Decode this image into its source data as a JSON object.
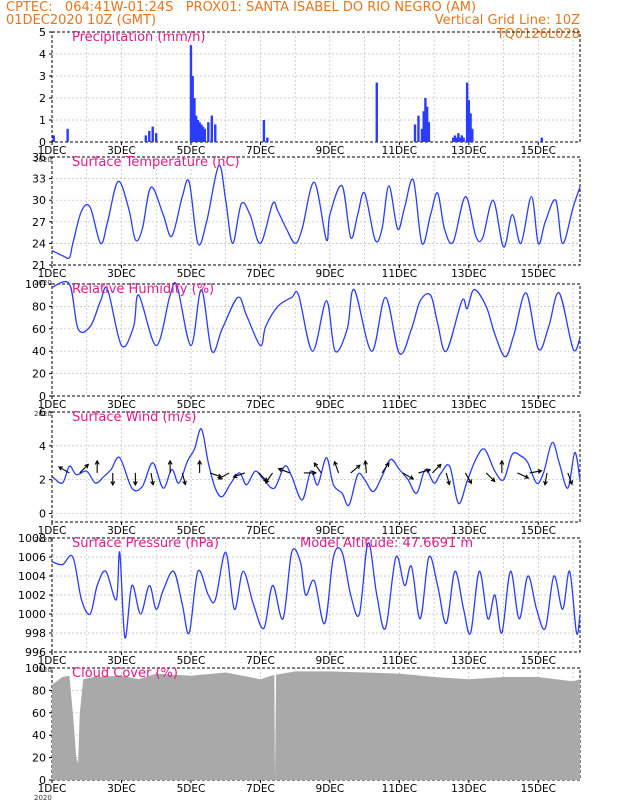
{
  "header": {
    "line1_left": "CPTEC:   064:41W-01:24S   PROX01: SANTA ISABEL DO RIO NEGRO (AM)",
    "line2_left": "01DEC2020 10Z (GMT)",
    "line2_right": "Vertical Grid Line: 10Z",
    "line3_right": "TQ0126L028"
  },
  "colors": {
    "header": "#e8741c",
    "title": "#e8178a",
    "series": "#2a3cff",
    "bars": "#2a3cff",
    "cloud": "#a9a9a9"
  },
  "x_axis": {
    "tick_labels": [
      "1DEC",
      "3DEC",
      "5DEC",
      "7DEC",
      "9DEC",
      "11DEC",
      "13DEC",
      "15DEC"
    ],
    "tick_days": [
      0,
      2,
      4,
      6,
      8,
      10,
      12,
      14
    ],
    "year_label": "2020",
    "range_days": [
      0,
      15.2
    ]
  },
  "chart_data": [
    {
      "type": "bar",
      "title": "Precipitation (mm/h)",
      "yticks": [
        0,
        1,
        2,
        3,
        4,
        5
      ],
      "ylim": [
        0,
        5
      ],
      "points": [
        [
          0.05,
          0.3
        ],
        [
          0.45,
          0.6
        ],
        [
          2.7,
          0.3
        ],
        [
          2.8,
          0.5
        ],
        [
          2.9,
          0.7
        ],
        [
          3.0,
          0.4
        ],
        [
          4.0,
          4.4
        ],
        [
          4.05,
          3.0
        ],
        [
          4.1,
          2.0
        ],
        [
          4.15,
          1.2
        ],
        [
          4.2,
          1.0
        ],
        [
          4.25,
          0.9
        ],
        [
          4.3,
          0.8
        ],
        [
          4.35,
          0.7
        ],
        [
          4.4,
          0.6
        ],
        [
          4.5,
          0.9
        ],
        [
          4.6,
          1.2
        ],
        [
          4.7,
          0.8
        ],
        [
          6.1,
          1.0
        ],
        [
          6.2,
          0.2
        ],
        [
          9.35,
          2.7
        ],
        [
          10.45,
          0.8
        ],
        [
          10.55,
          1.2
        ],
        [
          10.65,
          0.6
        ],
        [
          10.7,
          1.4
        ],
        [
          10.75,
          2.0
        ],
        [
          10.8,
          1.6
        ],
        [
          10.85,
          0.9
        ],
        [
          11.55,
          0.2
        ],
        [
          11.6,
          0.3
        ],
        [
          11.65,
          0.2
        ],
        [
          11.7,
          0.4
        ],
        [
          11.75,
          0.2
        ],
        [
          11.8,
          0.3
        ],
        [
          11.85,
          0.2
        ],
        [
          11.95,
          2.7
        ],
        [
          12.0,
          1.9
        ],
        [
          12.05,
          1.3
        ],
        [
          12.1,
          0.6
        ],
        [
          14.1,
          0.2
        ]
      ]
    },
    {
      "type": "line",
      "title": "Surface Temperature (nC)",
      "yticks": [
        21,
        24,
        27,
        30,
        33,
        36
      ],
      "ylim": [
        21,
        36
      ],
      "points": [
        [
          0.0,
          23.0
        ],
        [
          0.3,
          22.3
        ],
        [
          0.5,
          22.0
        ],
        [
          0.6,
          24.0
        ],
        [
          0.85,
          28.5
        ],
        [
          1.1,
          29.0
        ],
        [
          1.4,
          24.0
        ],
        [
          1.6,
          27.0
        ],
        [
          1.9,
          32.6
        ],
        [
          2.2,
          29.0
        ],
        [
          2.4,
          24.5
        ],
        [
          2.6,
          26.0
        ],
        [
          2.85,
          31.8
        ],
        [
          3.2,
          28.0
        ],
        [
          3.45,
          25.0
        ],
        [
          3.75,
          30.5
        ],
        [
          3.95,
          32.5
        ],
        [
          4.2,
          24.0
        ],
        [
          4.45,
          27.0
        ],
        [
          4.8,
          34.8
        ],
        [
          5.0,
          30.0
        ],
        [
          5.2,
          24.0
        ],
        [
          5.45,
          29.5
        ],
        [
          5.7,
          28.0
        ],
        [
          6.0,
          24.0
        ],
        [
          6.35,
          29.5
        ],
        [
          6.5,
          28.5
        ],
        [
          6.75,
          26.0
        ],
        [
          7.0,
          24.0
        ],
        [
          7.2,
          26.0
        ],
        [
          7.55,
          32.5
        ],
        [
          7.9,
          24.5
        ],
        [
          8.0,
          28.0
        ],
        [
          8.35,
          32.0
        ],
        [
          8.6,
          24.8
        ],
        [
          8.8,
          28.0
        ],
        [
          9.0,
          31.0
        ],
        [
          9.3,
          24.5
        ],
        [
          9.5,
          26.0
        ],
        [
          9.7,
          32.0
        ],
        [
          9.95,
          26.0
        ],
        [
          10.15,
          29.0
        ],
        [
          10.4,
          32.8
        ],
        [
          10.65,
          24.0
        ],
        [
          10.9,
          28.0
        ],
        [
          11.1,
          31.0
        ],
        [
          11.3,
          26.0
        ],
        [
          11.55,
          24.2
        ],
        [
          11.9,
          30.5
        ],
        [
          12.2,
          25.0
        ],
        [
          12.4,
          24.8
        ],
        [
          12.7,
          30.0
        ],
        [
          13.0,
          23.5
        ],
        [
          13.25,
          28.0
        ],
        [
          13.5,
          24.0
        ],
        [
          13.8,
          30.5
        ],
        [
          14.0,
          24.0
        ],
        [
          14.2,
          27.0
        ],
        [
          14.5,
          30.0
        ],
        [
          14.7,
          24.0
        ],
        [
          15.0,
          29.0
        ],
        [
          15.2,
          31.8
        ]
      ]
    },
    {
      "type": "line",
      "title": "Relative Humidity (%)",
      "yticks": [
        0,
        20,
        40,
        60,
        80,
        100
      ],
      "ylim": [
        0,
        100
      ],
      "points": [
        [
          0.0,
          97.0
        ],
        [
          0.5,
          100.0
        ],
        [
          0.75,
          60.0
        ],
        [
          1.1,
          62.0
        ],
        [
          1.4,
          85.0
        ],
        [
          1.6,
          95.0
        ],
        [
          2.0,
          45.0
        ],
        [
          2.35,
          62.0
        ],
        [
          2.5,
          90.0
        ],
        [
          3.0,
          45.0
        ],
        [
          3.4,
          90.0
        ],
        [
          3.6,
          98.0
        ],
        [
          4.0,
          45.0
        ],
        [
          4.3,
          95.0
        ],
        [
          4.6,
          40.0
        ],
        [
          4.9,
          60.0
        ],
        [
          5.35,
          88.0
        ],
        [
          5.6,
          72.0
        ],
        [
          6.0,
          45.0
        ],
        [
          6.15,
          62.0
        ],
        [
          6.5,
          80.0
        ],
        [
          6.9,
          88.0
        ],
        [
          7.1,
          90.0
        ],
        [
          7.5,
          40.0
        ],
        [
          7.9,
          85.0
        ],
        [
          8.15,
          40.0
        ],
        [
          8.5,
          60.0
        ],
        [
          8.7,
          95.0
        ],
        [
          9.2,
          40.0
        ],
        [
          9.6,
          88.0
        ],
        [
          10.0,
          38.0
        ],
        [
          10.35,
          60.0
        ],
        [
          10.6,
          85.0
        ],
        [
          10.9,
          90.0
        ],
        [
          11.1,
          65.0
        ],
        [
          11.35,
          40.0
        ],
        [
          11.8,
          85.0
        ],
        [
          11.95,
          78.0
        ],
        [
          12.15,
          95.0
        ],
        [
          12.5,
          80.0
        ],
        [
          12.75,
          55.0
        ],
        [
          13.05,
          35.0
        ],
        [
          13.3,
          55.0
        ],
        [
          13.65,
          92.0
        ],
        [
          14.0,
          42.0
        ],
        [
          14.3,
          62.0
        ],
        [
          14.6,
          92.0
        ],
        [
          15.0,
          42.0
        ],
        [
          15.2,
          52.0
        ]
      ]
    },
    {
      "type": "line",
      "title": "Surface Wind (m/s)",
      "yticks": [
        0,
        2,
        4,
        6
      ],
      "ylim": [
        -0.5,
        6
      ],
      "points": [
        [
          0.0,
          2.2
        ],
        [
          0.3,
          1.8
        ],
        [
          0.5,
          2.8
        ],
        [
          0.7,
          2.3
        ],
        [
          1.0,
          2.5
        ],
        [
          1.25,
          1.8
        ],
        [
          1.5,
          2.2
        ],
        [
          1.7,
          2.6
        ],
        [
          1.95,
          3.3
        ],
        [
          2.3,
          1.5
        ],
        [
          2.6,
          1.6
        ],
        [
          2.9,
          3.0
        ],
        [
          3.2,
          1.5
        ],
        [
          3.45,
          2.6
        ],
        [
          3.65,
          1.8
        ],
        [
          3.9,
          3.1
        ],
        [
          4.1,
          3.8
        ],
        [
          4.3,
          5.0
        ],
        [
          4.5,
          3.0
        ],
        [
          4.7,
          1.5
        ],
        [
          4.9,
          1.0
        ],
        [
          5.15,
          1.8
        ],
        [
          5.4,
          2.4
        ],
        [
          5.6,
          1.7
        ],
        [
          5.85,
          2.5
        ],
        [
          6.1,
          2.0
        ],
        [
          6.4,
          1.5
        ],
        [
          6.7,
          2.8
        ],
        [
          6.9,
          2.2
        ],
        [
          7.2,
          0.8
        ],
        [
          7.45,
          2.5
        ],
        [
          7.65,
          1.7
        ],
        [
          7.9,
          3.3
        ],
        [
          8.1,
          1.7
        ],
        [
          8.35,
          1.2
        ],
        [
          8.55,
          0.5
        ],
        [
          8.8,
          2.3
        ],
        [
          9.0,
          2.0
        ],
        [
          9.25,
          1.3
        ],
        [
          9.5,
          2.2
        ],
        [
          9.75,
          3.2
        ],
        [
          10.0,
          2.6
        ],
        [
          10.25,
          2.0
        ],
        [
          10.5,
          1.2
        ],
        [
          10.75,
          2.6
        ],
        [
          11.0,
          1.8
        ],
        [
          11.2,
          2.4
        ],
        [
          11.45,
          2.8
        ],
        [
          11.7,
          0.6
        ],
        [
          11.95,
          1.9
        ],
        [
          12.2,
          3.2
        ],
        [
          12.45,
          3.8
        ],
        [
          12.75,
          2.5
        ],
        [
          13.0,
          2.0
        ],
        [
          13.25,
          3.5
        ],
        [
          13.5,
          3.4
        ],
        [
          13.7,
          3.0
        ],
        [
          13.95,
          1.8
        ],
        [
          14.15,
          2.4
        ],
        [
          14.4,
          4.2
        ],
        [
          14.6,
          3.0
        ],
        [
          14.85,
          1.5
        ],
        [
          15.05,
          3.6
        ],
        [
          15.2,
          2.0
        ]
      ],
      "arrows": [
        [
          0.5,
          150
        ],
        [
          0.8,
          45
        ],
        [
          1.3,
          90
        ],
        [
          1.75,
          270
        ],
        [
          2.4,
          270
        ],
        [
          2.85,
          280
        ],
        [
          3.4,
          90
        ],
        [
          3.75,
          285
        ],
        [
          4.25,
          90
        ],
        [
          4.55,
          340
        ],
        [
          5.1,
          210
        ],
        [
          5.55,
          200
        ],
        [
          5.95,
          315
        ],
        [
          6.35,
          235
        ],
        [
          6.85,
          160
        ],
        [
          7.25,
          0
        ],
        [
          7.75,
          125
        ],
        [
          8.25,
          110
        ],
        [
          8.6,
          40
        ],
        [
          9.05,
          95
        ],
        [
          9.5,
          55
        ],
        [
          10.1,
          330
        ],
        [
          10.55,
          15
        ],
        [
          10.95,
          45
        ],
        [
          11.35,
          285
        ],
        [
          11.9,
          300
        ],
        [
          12.5,
          315
        ],
        [
          12.95,
          90
        ],
        [
          13.4,
          335
        ],
        [
          13.75,
          10
        ],
        [
          14.25,
          260
        ],
        [
          14.85,
          290
        ]
      ]
    },
    {
      "type": "line",
      "title": "Surface Pressure (hPa)",
      "annotation": "Model Altitude: 47.6691 m",
      "yticks": [
        996,
        998,
        1000,
        1002,
        1004,
        1006,
        1008
      ],
      "ylim": [
        996,
        1008
      ],
      "points": [
        [
          0.0,
          1005.5
        ],
        [
          0.3,
          1005.2
        ],
        [
          0.6,
          1006.0
        ],
        [
          0.85,
          1001.5
        ],
        [
          1.1,
          1000.0
        ],
        [
          1.3,
          1003.0
        ],
        [
          1.55,
          1004.5
        ],
        [
          1.85,
          1001.5
        ],
        [
          1.95,
          1006.5
        ],
        [
          2.1,
          997.5
        ],
        [
          2.3,
          1003.0
        ],
        [
          2.55,
          1000.0
        ],
        [
          2.8,
          1003.0
        ],
        [
          3.0,
          1000.5
        ],
        [
          3.2,
          1002.5
        ],
        [
          3.5,
          1004.5
        ],
        [
          3.75,
          1001.0
        ],
        [
          3.95,
          998.0
        ],
        [
          4.2,
          1004.5
        ],
        [
          4.5,
          1002.0
        ],
        [
          4.7,
          1001.5
        ],
        [
          5.0,
          1006.5
        ],
        [
          5.25,
          1000.5
        ],
        [
          5.5,
          1004.5
        ],
        [
          5.8,
          1001.0
        ],
        [
          6.1,
          998.5
        ],
        [
          6.35,
          1003.0
        ],
        [
          6.65,
          999.5
        ],
        [
          6.9,
          1006.5
        ],
        [
          7.15,
          1005.5
        ],
        [
          7.3,
          1002.0
        ],
        [
          7.55,
          1003.5
        ],
        [
          7.85,
          999.0
        ],
        [
          8.1,
          1006.0
        ],
        [
          8.35,
          1006.5
        ],
        [
          8.6,
          1002.0
        ],
        [
          8.85,
          1000.0
        ],
        [
          9.1,
          1007.5
        ],
        [
          9.35,
          1002.0
        ],
        [
          9.6,
          998.5
        ],
        [
          9.9,
          1006.0
        ],
        [
          10.15,
          1003.0
        ],
        [
          10.35,
          1005.0
        ],
        [
          10.6,
          999.5
        ],
        [
          10.85,
          1006.0
        ],
        [
          11.1,
          1003.0
        ],
        [
          11.35,
          999.0
        ],
        [
          11.6,
          1004.5
        ],
        [
          11.85,
          1000.5
        ],
        [
          12.05,
          998.0
        ],
        [
          12.3,
          1004.5
        ],
        [
          12.55,
          999.5
        ],
        [
          12.75,
          1002.0
        ],
        [
          12.95,
          998.0
        ],
        [
          13.2,
          1004.5
        ],
        [
          13.45,
          999.5
        ],
        [
          13.7,
          1004.0
        ],
        [
          13.95,
          1000.5
        ],
        [
          14.2,
          998.5
        ],
        [
          14.45,
          1004.0
        ],
        [
          14.7,
          1000.5
        ],
        [
          14.9,
          1004.5
        ],
        [
          15.1,
          998.0
        ],
        [
          15.2,
          1000.0
        ]
      ]
    },
    {
      "type": "bar",
      "title": "Cloud Cover (%)",
      "yticks": [
        0,
        20,
        40,
        60,
        80,
        100
      ],
      "ylim": [
        0,
        100
      ],
      "profile": [
        [
          0.0,
          85
        ],
        [
          0.3,
          92
        ],
        [
          0.5,
          93
        ],
        [
          0.6,
          60
        ],
        [
          0.65,
          40
        ],
        [
          0.7,
          20
        ],
        [
          0.75,
          15
        ],
        [
          0.8,
          60
        ],
        [
          0.9,
          90
        ],
        [
          1.2,
          92
        ],
        [
          2.0,
          93
        ],
        [
          2.5,
          90
        ],
        [
          3.0,
          95
        ],
        [
          4.0,
          93
        ],
        [
          5.0,
          96
        ],
        [
          6.0,
          90
        ],
        [
          6.4,
          94
        ],
        [
          6.42,
          0
        ],
        [
          6.45,
          94
        ],
        [
          7.0,
          97
        ],
        [
          8.0,
          97
        ],
        [
          9.0,
          96
        ],
        [
          10.0,
          95
        ],
        [
          11.0,
          92
        ],
        [
          12.0,
          90
        ],
        [
          13.0,
          92
        ],
        [
          14.0,
          92
        ],
        [
          14.5,
          90
        ],
        [
          15.0,
          88
        ],
        [
          15.2,
          90
        ]
      ]
    }
  ]
}
